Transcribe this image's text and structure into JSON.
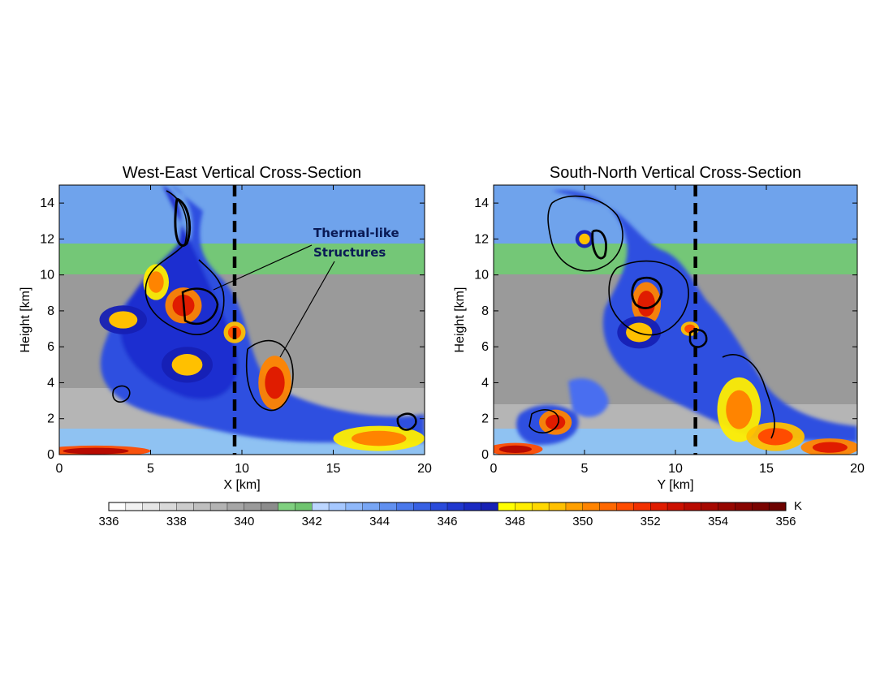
{
  "chart_data": [
    {
      "type": "heatmap",
      "title": "West-East Vertical Cross-Section",
      "xlabel": "X [km]",
      "ylabel": "Height [km]",
      "xlim": [
        0,
        20
      ],
      "ylim": [
        0,
        15
      ],
      "x_ticks": [
        "0",
        "5",
        "10",
        "15",
        "20"
      ],
      "y_ticks": [
        "0",
        "2",
        "4",
        "6",
        "8",
        "10",
        "12",
        "14"
      ],
      "dashed_line_x": 9.6,
      "annotation": [
        "Thermal-like",
        "Structures"
      ],
      "warm_regions": [
        {
          "x": 6.8,
          "y": 8.3,
          "rx": 1.0,
          "ry": 1.0,
          "level": 352
        },
        {
          "x": 11.8,
          "y": 4.0,
          "rx": 0.9,
          "ry": 1.5,
          "level": 352
        },
        {
          "x": 5.3,
          "y": 9.6,
          "rx": 0.7,
          "ry": 1.0,
          "level": 350
        },
        {
          "x": 9.6,
          "y": 6.8,
          "rx": 0.6,
          "ry": 0.6,
          "level": 351
        },
        {
          "x": 3.5,
          "y": 7.5,
          "rx": 1.3,
          "ry": 0.8,
          "level": 349
        },
        {
          "x": 17.5,
          "y": 0.9,
          "rx": 2.5,
          "ry": 0.7,
          "level": 350
        },
        {
          "x": 2.0,
          "y": 0.2,
          "rx": 3.0,
          "ry": 0.3,
          "level": 353
        },
        {
          "x": 7.0,
          "y": 5.0,
          "rx": 1.4,
          "ry": 1.0,
          "level": 349
        }
      ]
    },
    {
      "type": "heatmap",
      "title": "South-North Vertical Cross-Section",
      "xlabel": "Y [km]",
      "ylabel": "Height [km]",
      "xlim": [
        0,
        20
      ],
      "ylim": [
        0,
        15
      ],
      "x_ticks": [
        "0",
        "5",
        "10",
        "15",
        "20"
      ],
      "y_ticks": [
        "0",
        "2",
        "4",
        "6",
        "8",
        "10",
        "12",
        "14"
      ],
      "dashed_line_x": 11.1,
      "warm_regions": [
        {
          "x": 8.4,
          "y": 8.4,
          "rx": 0.8,
          "ry": 1.2,
          "level": 352
        },
        {
          "x": 8.0,
          "y": 6.8,
          "rx": 1.2,
          "ry": 0.9,
          "level": 349
        },
        {
          "x": 10.8,
          "y": 7.0,
          "rx": 0.5,
          "ry": 0.4,
          "level": 351
        },
        {
          "x": 3.4,
          "y": 1.8,
          "rx": 0.9,
          "ry": 0.7,
          "level": 352
        },
        {
          "x": 13.5,
          "y": 2.5,
          "rx": 1.2,
          "ry": 1.8,
          "level": 350
        },
        {
          "x": 15.5,
          "y": 1.0,
          "rx": 1.6,
          "ry": 0.8,
          "level": 351
        },
        {
          "x": 18.5,
          "y": 0.4,
          "rx": 1.6,
          "ry": 0.5,
          "level": 352
        },
        {
          "x": 1.2,
          "y": 0.3,
          "rx": 1.5,
          "ry": 0.35,
          "level": 353
        },
        {
          "x": 5.0,
          "y": 12.0,
          "rx": 0.5,
          "ry": 0.5,
          "level": 349
        }
      ]
    }
  ],
  "colorbar": {
    "min": 336,
    "max": 356,
    "step": 0.5,
    "unit": "K",
    "tick_labels": [
      "336",
      "338",
      "340",
      "342",
      "344",
      "346",
      "348",
      "350",
      "352",
      "354",
      "356"
    ]
  }
}
